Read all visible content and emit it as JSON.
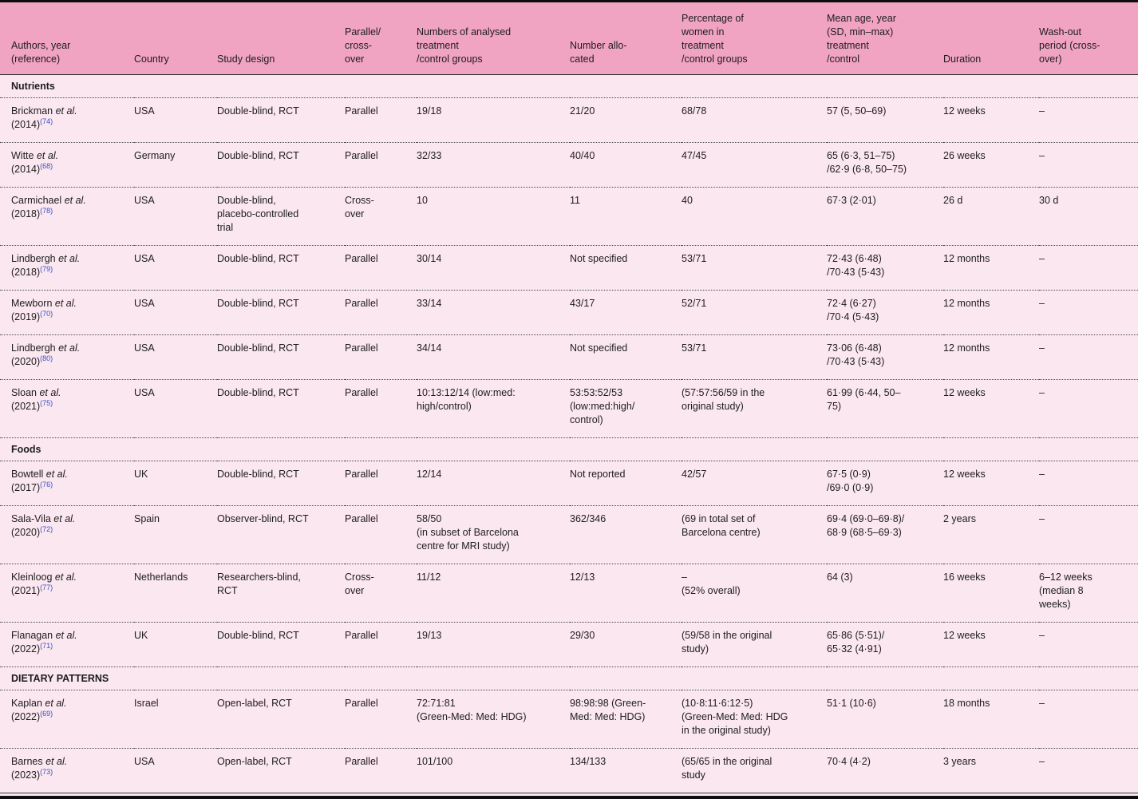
{
  "colors": {
    "header_pink": "#f1a3c2",
    "body_pink": "#fbe7ef",
    "link_blue": "#3c50c8",
    "rule_black": "#0d0d0d",
    "text": "#1d1d1d"
  },
  "table": {
    "columns": [
      "Authors, year\n(reference)",
      "Country",
      "Study design",
      "Parallel/\ncross-\nover",
      "Numbers of analysed\ntreatment\n/control groups",
      "Number allo-\ncated",
      "Percentage of\nwomen in\ntreatment\n/control groups",
      "Mean age, year\n(SD, min–max)\ntreatment\n/control",
      "Duration",
      "Wash-out\nperiod (cross-\nover)"
    ],
    "sections": [
      {
        "title": "Nutrients",
        "rows": [
          {
            "author": {
              "name": "Brickman",
              "etal": "et al.",
              "year": "(2014)",
              "ref": "(74)"
            },
            "country": "USA",
            "design": "Double-blind, RCT",
            "arm": "Parallel",
            "analysed": "19/18",
            "allocated": "21/20",
            "women": "68/78",
            "age": "57 (5, 50–69)",
            "duration": "12 weeks",
            "washout": "–"
          },
          {
            "author": {
              "name": "Witte",
              "etal": "et al.",
              "year": "(2014)",
              "ref": "(68)"
            },
            "country": "Germany",
            "design": "Double-blind, RCT",
            "arm": "Parallel",
            "analysed": "32/33",
            "allocated": "40/40",
            "women": "47/45",
            "age": "65 (6·3, 51–75)\n/62·9 (6·8, 50–75)",
            "duration": "26 weeks",
            "washout": "–"
          },
          {
            "author": {
              "name": "Carmichael",
              "etal": "et al.",
              "year": "(2018)",
              "ref": "(78)"
            },
            "country": "USA",
            "design": "Double-blind,\nplacebo-controlled\ntrial",
            "arm": "Cross-\nover",
            "analysed": "10",
            "allocated": "11",
            "women": "40",
            "age": "67·3 (2·01)",
            "duration": "26 d",
            "washout": "30 d"
          },
          {
            "author": {
              "name": "Lindbergh",
              "etal": "et al.",
              "year": "(2018)",
              "ref": "(79)"
            },
            "country": "USA",
            "design": "Double-blind, RCT",
            "arm": "Parallel",
            "analysed": "30/14",
            "allocated": "Not specified",
            "women": "53/71",
            "age": "72·43 (6·48)\n/70·43 (5·43)",
            "duration": "12 months",
            "washout": "–"
          },
          {
            "author": {
              "name": "Mewborn",
              "etal": "et al.",
              "year": "(2019)",
              "ref": "(70)"
            },
            "country": "USA",
            "design": "Double-blind, RCT",
            "arm": "Parallel",
            "analysed": "33/14",
            "allocated": "43/17",
            "women": "52/71",
            "age": "72·4 (6·27)\n/70·4 (5·43)",
            "duration": "12 months",
            "washout": "–"
          },
          {
            "author": {
              "name": "Lindbergh",
              "etal": "et al.",
              "year": "(2020)",
              "ref": "(80)"
            },
            "country": "USA",
            "design": "Double-blind, RCT",
            "arm": "Parallel",
            "analysed": "34/14",
            "allocated": "Not specified",
            "women": "53/71",
            "age": "73·06 (6·48)\n/70·43 (5·43)",
            "duration": "12 months",
            "washout": "–"
          },
          {
            "author": {
              "name": "Sloan",
              "etal": "et al.",
              "year": "(2021)",
              "ref": "(75)"
            },
            "country": "USA",
            "design": "Double-blind, RCT",
            "arm": "Parallel",
            "analysed": "10:13:12/14 (low:med:\nhigh/control)",
            "allocated": "53:53:52/53\n(low:med:high/\ncontrol)",
            "women": "(57:57:56/59 in the\noriginal study)",
            "age": "61·99 (6·44, 50–\n75)",
            "duration": "12 weeks",
            "washout": "–"
          }
        ]
      },
      {
        "title": "Foods",
        "rows": [
          {
            "author": {
              "name": "Bowtell",
              "etal": "et al.",
              "year": "(2017)",
              "ref": "(76)"
            },
            "country": "UK",
            "design": "Double-blind, RCT",
            "arm": "Parallel",
            "analysed": "12/14",
            "allocated": "Not reported",
            "women": "42/57",
            "age": "67·5 (0·9)\n/69·0 (0·9)",
            "duration": "12 weeks",
            "washout": "–"
          },
          {
            "author": {
              "name": "Sala-Vila",
              "etal": "et al.",
              "year": "(2020)",
              "ref": "(72)"
            },
            "country": "Spain",
            "design": "Observer-blind, RCT",
            "arm": "Parallel",
            "analysed": "58/50\n(in subset of Barcelona\ncentre for MRI study)",
            "allocated": "362/346",
            "women": "(69 in total set of\nBarcelona centre)",
            "age": "69·4 (69·0–69·8)/\n68·9 (68·5–69·3)",
            "duration": "2 years",
            "washout": "–"
          },
          {
            "author": {
              "name": "Kleinloog",
              "etal": "et al.",
              "year": "(2021)",
              "ref": "(77)"
            },
            "country": "Netherlands",
            "design": "Researchers-blind,\nRCT",
            "arm": "Cross-\nover",
            "analysed": "11/12",
            "allocated": "12/13",
            "women": "–\n(52% overall)",
            "age": "64 (3)",
            "duration": "16 weeks",
            "washout": "6–12 weeks\n(median 8\nweeks)"
          },
          {
            "author": {
              "name": "Flanagan",
              "etal": "et al.",
              "year": "(2022)",
              "ref": "(71)"
            },
            "country": "UK",
            "design": "Double-blind, RCT",
            "arm": "Parallel",
            "analysed": "19/13",
            "allocated": "29/30",
            "women": "(59/58 in the original\nstudy)",
            "age": "65·86 (5·51)/\n65·32 (4·91)",
            "duration": "12 weeks",
            "washout": "–"
          }
        ]
      },
      {
        "title": "DIETARY PATTERNS",
        "rows": [
          {
            "author": {
              "name": "Kaplan",
              "etal": "et al.",
              "year": "(2022)",
              "ref": "(69)"
            },
            "country": "Israel",
            "design": "Open-label, RCT",
            "arm": "Parallel",
            "analysed": "72:71:81\n(Green-Med: Med: HDG)",
            "allocated": "98:98:98 (Green-\nMed: Med: HDG)",
            "women": "(10·8:11·6:12·5)\n(Green-Med: Med: HDG\nin the original study)",
            "age": "51·1 (10·6)",
            "duration": "18 months",
            "washout": "–"
          },
          {
            "author": {
              "name": "Barnes",
              "etal": "et al.",
              "year": "(2023)",
              "ref": "(73)"
            },
            "country": "USA",
            "design": "Open-label, RCT",
            "arm": "Parallel",
            "analysed": "101/100",
            "allocated": "134/133",
            "women": "(65/65 in the original\nstudy",
            "age": "70·4 (4·2)",
            "duration": "3 years",
            "washout": "–"
          }
        ]
      }
    ]
  }
}
